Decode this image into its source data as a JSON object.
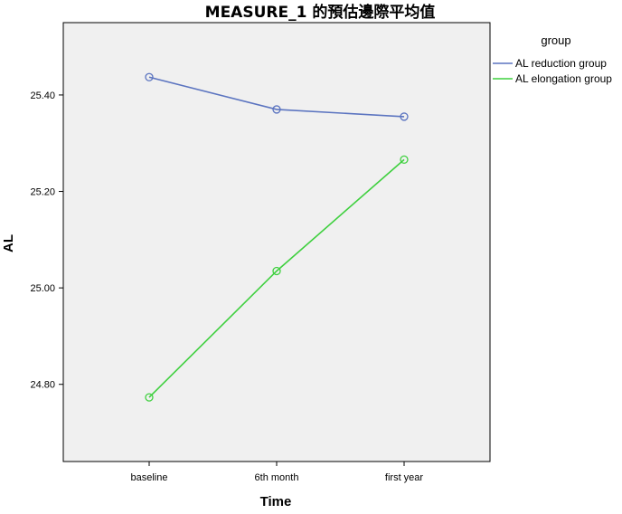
{
  "chart_data": {
    "type": "line",
    "title": "MEASURE_1 的預估邊際平均值",
    "xlabel": "Time",
    "ylabel": "AL",
    "categories": [
      "baseline",
      "6th month",
      "first year"
    ],
    "ylim": [
      24.64,
      25.55
    ],
    "yticks": [
      24.8,
      25.0,
      25.2,
      25.4
    ],
    "ytick_labels": [
      "24.80",
      "25.00",
      "25.20",
      "25.40"
    ],
    "grid": false,
    "legend_title": "group",
    "legend_position": "top-right",
    "series": [
      {
        "name": "AL reduction group",
        "values": [
          25.437,
          25.37,
          25.355
        ],
        "color": "#5b74c0"
      },
      {
        "name": "AL elongation group",
        "values": [
          24.773,
          25.035,
          25.266
        ],
        "color": "#3fd03f"
      }
    ]
  }
}
